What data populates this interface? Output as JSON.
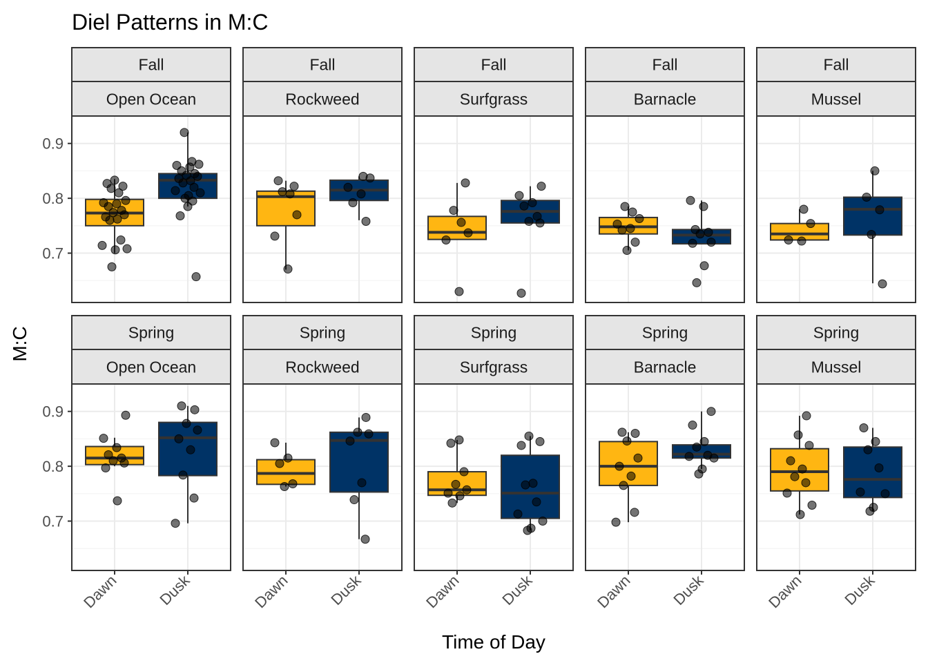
{
  "chart_data": {
    "type": "box",
    "title": "Diel Patterns in M:C",
    "xlabel": "Time of Day",
    "ylabel": "M:C",
    "categories": [
      "Dawn",
      "Dusk"
    ],
    "category_colors": {
      "Dawn": "#FFB612",
      "Dusk": "#003366"
    },
    "point_color": "#000000",
    "yticks": [
      0.7,
      0.8,
      0.9
    ],
    "ylim": [
      0.61,
      0.95
    ],
    "grid": true,
    "facet_rows": [
      "Fall",
      "Spring"
    ],
    "facet_cols": [
      "Open Ocean",
      "Rockweed",
      "Surfgrass",
      "Barnacle",
      "Mussel"
    ],
    "panels": [
      {
        "season": "Fall",
        "habitat": "Open Ocean",
        "boxes": [
          {
            "category": "Dawn",
            "min": 0.7,
            "q1": 0.75,
            "median": 0.773,
            "q3": 0.798,
            "max": 0.835,
            "points": [
              0.833,
              0.827,
              0.822,
              0.818,
              0.81,
              0.796,
              0.792,
              0.79,
              0.785,
              0.778,
              0.774,
              0.77,
              0.766,
              0.762,
              0.76,
              0.724,
              0.714,
              0.708,
              0.706,
              0.675
            ]
          },
          {
            "category": "Dusk",
            "min": 0.785,
            "q1": 0.8,
            "median": 0.833,
            "q3": 0.845,
            "max": 0.92,
            "points": [
              0.92,
              0.867,
              0.862,
              0.86,
              0.857,
              0.85,
              0.845,
              0.842,
              0.84,
              0.836,
              0.832,
              0.828,
              0.82,
              0.814,
              0.81,
              0.805,
              0.8,
              0.795,
              0.785,
              0.768,
              0.657
            ]
          }
        ]
      },
      {
        "season": "Fall",
        "habitat": "Rockweed",
        "boxes": [
          {
            "category": "Dawn",
            "min": 0.67,
            "q1": 0.75,
            "median": 0.803,
            "q3": 0.813,
            "max": 0.832,
            "points": [
              0.832,
              0.822,
              0.812,
              0.808,
              0.77,
              0.731,
              0.671
            ]
          },
          {
            "category": "Dusk",
            "min": 0.76,
            "q1": 0.796,
            "median": 0.815,
            "q3": 0.833,
            "max": 0.84,
            "points": [
              0.84,
              0.837,
              0.82,
              0.808,
              0.792,
              0.758
            ]
          }
        ]
      },
      {
        "season": "Fall",
        "habitat": "Surfgrass",
        "boxes": [
          {
            "category": "Dawn",
            "min": 0.724,
            "q1": 0.725,
            "median": 0.738,
            "q3": 0.767,
            "max": 0.828,
            "points": [
              0.828,
              0.778,
              0.756,
              0.737,
              0.724,
              0.63
            ]
          },
          {
            "category": "Dusk",
            "min": 0.755,
            "q1": 0.755,
            "median": 0.776,
            "q3": 0.796,
            "max": 0.822,
            "points": [
              0.822,
              0.805,
              0.792,
              0.786,
              0.767,
              0.758,
              0.755,
              0.627
            ]
          }
        ]
      },
      {
        "season": "Fall",
        "habitat": "Barnacle",
        "boxes": [
          {
            "category": "Dawn",
            "min": 0.705,
            "q1": 0.735,
            "median": 0.748,
            "q3": 0.765,
            "max": 0.785,
            "points": [
              0.785,
              0.775,
              0.763,
              0.753,
              0.745,
              0.742,
              0.72,
              0.705
            ]
          },
          {
            "category": "Dusk",
            "min": 0.717,
            "q1": 0.717,
            "median": 0.733,
            "q3": 0.743,
            "max": 0.796,
            "points": [
              0.796,
              0.785,
              0.743,
              0.738,
              0.735,
              0.72,
              0.718,
              0.677,
              0.646
            ]
          }
        ]
      },
      {
        "season": "Fall",
        "habitat": "Mussel",
        "boxes": [
          {
            "category": "Dawn",
            "min": 0.722,
            "q1": 0.724,
            "median": 0.735,
            "q3": 0.754,
            "max": 0.78,
            "points": [
              0.78,
              0.754,
              0.724,
              0.722
            ]
          },
          {
            "category": "Dusk",
            "min": 0.645,
            "q1": 0.733,
            "median": 0.78,
            "q3": 0.802,
            "max": 0.85,
            "points": [
              0.85,
              0.802,
              0.779,
              0.734,
              0.644
            ]
          }
        ]
      },
      {
        "season": "Spring",
        "habitat": "Open Ocean",
        "boxes": [
          {
            "category": "Dawn",
            "min": 0.8,
            "q1": 0.803,
            "median": 0.815,
            "q3": 0.836,
            "max": 0.852,
            "points": [
              0.893,
              0.851,
              0.834,
              0.821,
              0.815,
              0.81,
              0.806,
              0.797,
              0.737
            ]
          },
          {
            "category": "Dusk",
            "min": 0.696,
            "q1": 0.783,
            "median": 0.852,
            "q3": 0.88,
            "max": 0.91,
            "points": [
              0.91,
              0.903,
              0.878,
              0.866,
              0.85,
              0.83,
              0.784,
              0.742,
              0.696
            ]
          }
        ]
      },
      {
        "season": "Spring",
        "habitat": "Rockweed",
        "boxes": [
          {
            "category": "Dawn",
            "min": 0.763,
            "q1": 0.767,
            "median": 0.787,
            "q3": 0.812,
            "max": 0.843,
            "points": [
              0.843,
              0.815,
              0.805,
              0.768,
              0.763
            ]
          },
          {
            "category": "Dusk",
            "min": 0.667,
            "q1": 0.753,
            "median": 0.847,
            "q3": 0.862,
            "max": 0.889,
            "points": [
              0.889,
              0.862,
              0.859,
              0.846,
              0.77,
              0.739,
              0.667
            ]
          }
        ]
      },
      {
        "season": "Spring",
        "habitat": "Surfgrass",
        "boxes": [
          {
            "category": "Dawn",
            "min": 0.733,
            "q1": 0.747,
            "median": 0.757,
            "q3": 0.79,
            "max": 0.848,
            "points": [
              0.848,
              0.842,
              0.79,
              0.767,
              0.757,
              0.751,
              0.746,
              0.733
            ]
          },
          {
            "category": "Dusk",
            "min": 0.683,
            "q1": 0.705,
            "median": 0.751,
            "q3": 0.82,
            "max": 0.855,
            "points": [
              0.855,
              0.845,
              0.838,
              0.769,
              0.766,
              0.735,
              0.713,
              0.7,
              0.687,
              0.683
            ]
          }
        ]
      },
      {
        "season": "Spring",
        "habitat": "Barnacle",
        "boxes": [
          {
            "category": "Dawn",
            "min": 0.698,
            "q1": 0.765,
            "median": 0.8,
            "q3": 0.845,
            "max": 0.862,
            "points": [
              0.862,
              0.86,
              0.846,
              0.815,
              0.8,
              0.782,
              0.765,
              0.716,
              0.698
            ]
          },
          {
            "category": "Dusk",
            "min": 0.795,
            "q1": 0.815,
            "median": 0.822,
            "q3": 0.839,
            "max": 0.9,
            "points": [
              0.9,
              0.875,
              0.845,
              0.835,
              0.82,
              0.818,
              0.815,
              0.795,
              0.786
            ]
          }
        ]
      },
      {
        "season": "Spring",
        "habitat": "Mussel",
        "boxes": [
          {
            "category": "Dawn",
            "min": 0.712,
            "q1": 0.755,
            "median": 0.79,
            "q3": 0.832,
            "max": 0.892,
            "points": [
              0.892,
              0.857,
              0.838,
              0.81,
              0.795,
              0.781,
              0.77,
              0.751,
              0.729,
              0.712
            ]
          },
          {
            "category": "Dusk",
            "min": 0.718,
            "q1": 0.743,
            "median": 0.776,
            "q3": 0.835,
            "max": 0.87,
            "points": [
              0.87,
              0.845,
              0.83,
              0.797,
              0.753,
              0.75,
              0.725,
              0.718
            ]
          }
        ]
      }
    ]
  }
}
